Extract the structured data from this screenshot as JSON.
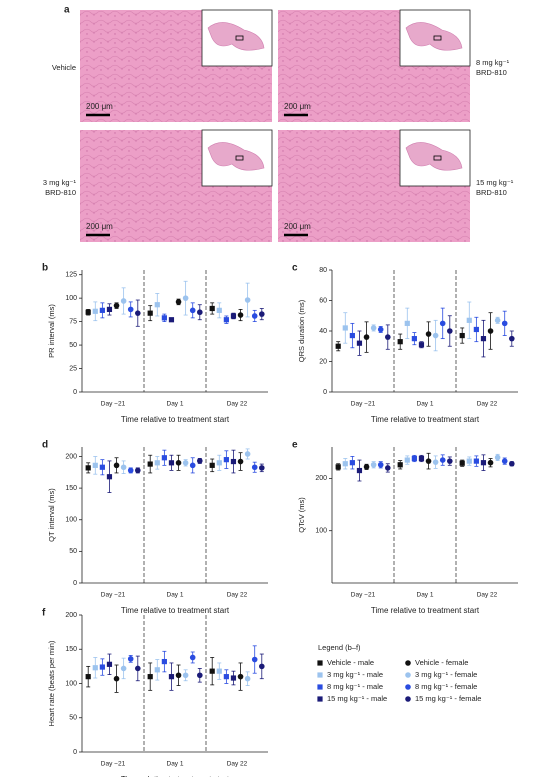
{
  "images": {
    "label": "a",
    "panels": [
      {
        "label": [
          "Vehicle"
        ],
        "scale": "200 μm"
      },
      {
        "label": [
          "8 mg kg⁻¹",
          "BRD-810"
        ],
        "scale": "200 μm"
      },
      {
        "label": [
          "3 mg kg⁻¹",
          "BRD-810"
        ],
        "scale": "200 μm"
      },
      {
        "label": [
          "15 mg kg⁻¹",
          "BRD-810"
        ],
        "scale": "200 μm"
      }
    ]
  },
  "legend": {
    "title": "Legend (b–f)",
    "entries": [
      {
        "name": "Vehicle - male",
        "color": "#111111",
        "marker": "square"
      },
      {
        "name": "3 mg kg⁻¹ - male",
        "color": "#9cc3ee",
        "marker": "square"
      },
      {
        "name": "8 mg kg⁻¹ - male",
        "color": "#2a4ce0",
        "marker": "square"
      },
      {
        "name": "15 mg kg⁻¹ - male",
        "color": "#1b1b78",
        "marker": "square"
      },
      {
        "name": "Vehicle - female",
        "color": "#111111",
        "marker": "circle"
      },
      {
        "name": "3 mg kg⁻¹ - female",
        "color": "#9cc3ee",
        "marker": "circle"
      },
      {
        "name": "8 mg kg⁻¹ - female",
        "color": "#2a4ce0",
        "marker": "circle"
      },
      {
        "name": "15 mg kg⁻¹ - female",
        "color": "#1b1b78",
        "marker": "circle"
      }
    ]
  },
  "chart_data": [
    {
      "type": "errorbar",
      "label": "b",
      "ylabel": "PR interval (ms)",
      "xlabel": "Time relative to treatment start",
      "categories": [
        "Day −21",
        "Day 1",
        "Day 22"
      ],
      "ylim": [
        0,
        130
      ],
      "yticks": [
        0,
        25,
        50,
        75,
        100,
        125
      ],
      "series": [
        {
          "values": [
            85,
            84,
            89
          ],
          "errors": [
            3,
            8,
            6
          ]
        },
        {
          "values": [
            86,
            93,
            87
          ],
          "errors": [
            10,
            12,
            8
          ]
        },
        {
          "values": [
            87,
            79,
            77
          ],
          "errors": [
            8,
            4,
            4
          ]
        },
        {
          "values": [
            88,
            77,
            81
          ],
          "errors": [
            6,
            2,
            3
          ]
        },
        {
          "values": [
            92,
            96,
            82
          ],
          "errors": [
            3,
            3,
            6
          ]
        },
        {
          "values": [
            97,
            100,
            98
          ],
          "errors": [
            14,
            18,
            18
          ]
        },
        {
          "values": [
            88,
            87,
            81
          ],
          "errors": [
            8,
            8,
            6
          ]
        },
        {
          "values": [
            84,
            85,
            83
          ],
          "errors": [
            14,
            8,
            6
          ]
        }
      ]
    },
    {
      "type": "errorbar",
      "label": "c",
      "ylabel": "QRS duration (ms)",
      "xlabel": "Time relative to treatment start",
      "categories": [
        "Day −21",
        "Day 1",
        "Day 22"
      ],
      "ylim": [
        0,
        80
      ],
      "yticks": [
        0,
        20,
        40,
        60,
        80
      ],
      "series": [
        {
          "values": [
            30,
            33,
            37
          ],
          "errors": [
            3,
            5,
            5
          ]
        },
        {
          "values": [
            42,
            45,
            47
          ],
          "errors": [
            10,
            10,
            12
          ]
        },
        {
          "values": [
            37,
            35,
            41
          ],
          "errors": [
            8,
            4,
            8
          ]
        },
        {
          "values": [
            32,
            31,
            35
          ],
          "errors": [
            8,
            2,
            12
          ]
        },
        {
          "values": [
            36,
            38,
            40
          ],
          "errors": [
            10,
            8,
            12
          ]
        },
        {
          "values": [
            42,
            37,
            47
          ],
          "errors": [
            2,
            10,
            2
          ]
        },
        {
          "values": [
            41,
            45,
            45
          ],
          "errors": [
            2,
            10,
            8
          ]
        },
        {
          "values": [
            36,
            40,
            35
          ],
          "errors": [
            8,
            10,
            5
          ]
        }
      ]
    },
    {
      "type": "errorbar",
      "label": "d",
      "ylabel": "QT interval (ms)",
      "xlabel": "Time relative to treatment start",
      "categories": [
        "Day −21",
        "Day 1",
        "Day 22"
      ],
      "ylim": [
        0,
        215
      ],
      "yticks": [
        0,
        50,
        100,
        150,
        200
      ],
      "series": [
        {
          "values": [
            182,
            188,
            186
          ],
          "errors": [
            8,
            14,
            10
          ]
        },
        {
          "values": [
            186,
            190,
            190
          ],
          "errors": [
            14,
            10,
            12
          ]
        },
        {
          "values": [
            183,
            198,
            195
          ],
          "errors": [
            12,
            12,
            14
          ]
        },
        {
          "values": [
            168,
            190,
            192
          ],
          "errors": [
            25,
            12,
            18
          ]
        },
        {
          "values": [
            186,
            190,
            192
          ],
          "errors": [
            12,
            12,
            14
          ]
        },
        {
          "values": [
            183,
            190,
            204
          ],
          "errors": [
            10,
            5,
            8
          ]
        },
        {
          "values": [
            178,
            186,
            183
          ],
          "errors": [
            4,
            12,
            8
          ]
        },
        {
          "values": [
            178,
            193,
            182
          ],
          "errors": [
            4,
            4,
            6
          ]
        }
      ]
    },
    {
      "type": "errorbar",
      "label": "e",
      "ylabel": "QTcV (ms)",
      "xlabel": "Time relative to treatment start",
      "categories": [
        "Day −21",
        "Day 1",
        "Day 22"
      ],
      "ylim": [
        0,
        260
      ],
      "yticks": [
        100,
        200
      ],
      "series": [
        {
          "values": [
            222,
            226,
            229
          ],
          "errors": [
            6,
            8,
            6
          ]
        },
        {
          "values": [
            228,
            235,
            233
          ],
          "errors": [
            10,
            8,
            8
          ]
        },
        {
          "values": [
            230,
            238,
            233
          ],
          "errors": [
            12,
            6,
            10
          ]
        },
        {
          "values": [
            215,
            238,
            230
          ],
          "errors": [
            20,
            6,
            15
          ]
        },
        {
          "values": [
            222,
            233,
            230
          ],
          "errors": [
            5,
            15,
            8
          ]
        },
        {
          "values": [
            226,
            231,
            240
          ],
          "errors": [
            6,
            12,
            6
          ]
        },
        {
          "values": [
            226,
            235,
            233
          ],
          "errors": [
            6,
            10,
            6
          ]
        },
        {
          "values": [
            220,
            233,
            228
          ],
          "errors": [
            8,
            8,
            4
          ]
        }
      ]
    },
    {
      "type": "errorbar",
      "label": "f",
      "ylabel": "Heart rate (beats per min)",
      "xlabel": "Time relative to treatment start",
      "categories": [
        "Day −21",
        "Day 1",
        "Day 22"
      ],
      "ylim": [
        0,
        200
      ],
      "yticks": [
        0,
        50,
        100,
        150,
        200
      ],
      "series": [
        {
          "values": [
            110,
            110,
            118
          ],
          "errors": [
            15,
            20,
            20
          ]
        },
        {
          "values": [
            123,
            120,
            118
          ],
          "errors": [
            15,
            15,
            12
          ]
        },
        {
          "values": [
            124,
            132,
            110
          ],
          "errors": [
            12,
            15,
            10
          ]
        },
        {
          "values": [
            128,
            110,
            108
          ],
          "errors": [
            15,
            20,
            10
          ]
        },
        {
          "values": [
            107,
            112,
            110
          ],
          "errors": [
            20,
            15,
            20
          ]
        },
        {
          "values": [
            122,
            112,
            107
          ],
          "errors": [
            15,
            8,
            10
          ]
        },
        {
          "values": [
            136,
            138,
            135
          ],
          "errors": [
            5,
            8,
            20
          ]
        },
        {
          "values": [
            122,
            112,
            125
          ],
          "errors": [
            18,
            10,
            18
          ]
        }
      ]
    }
  ]
}
